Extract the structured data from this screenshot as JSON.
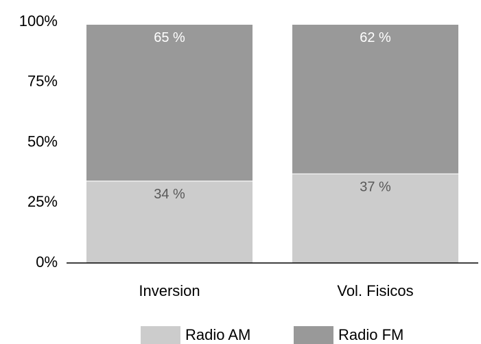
{
  "chart_data": {
    "type": "stacked_bar",
    "categories": [
      "Inversion",
      "Vol. Fisicos"
    ],
    "series": [
      {
        "name": "Radio AM",
        "color": "#cccccc",
        "label_color": "#595959",
        "values": [
          34,
          37
        ],
        "value_labels": [
          "34 %",
          "37 %"
        ]
      },
      {
        "name": "Radio FM",
        "color": "#999999",
        "label_color": "#ffffff",
        "values": [
          65,
          62
        ],
        "value_labels": [
          "65 %",
          "62 %"
        ]
      }
    ],
    "ylim": [
      0,
      100
    ],
    "yticks": [
      {
        "value": 0,
        "label": "0%"
      },
      {
        "value": 25,
        "label": "25%"
      },
      {
        "value": 50,
        "label": "50%"
      },
      {
        "value": 75,
        "label": "75%"
      },
      {
        "value": 100,
        "label": "100%"
      }
    ],
    "legend": "bottom"
  }
}
